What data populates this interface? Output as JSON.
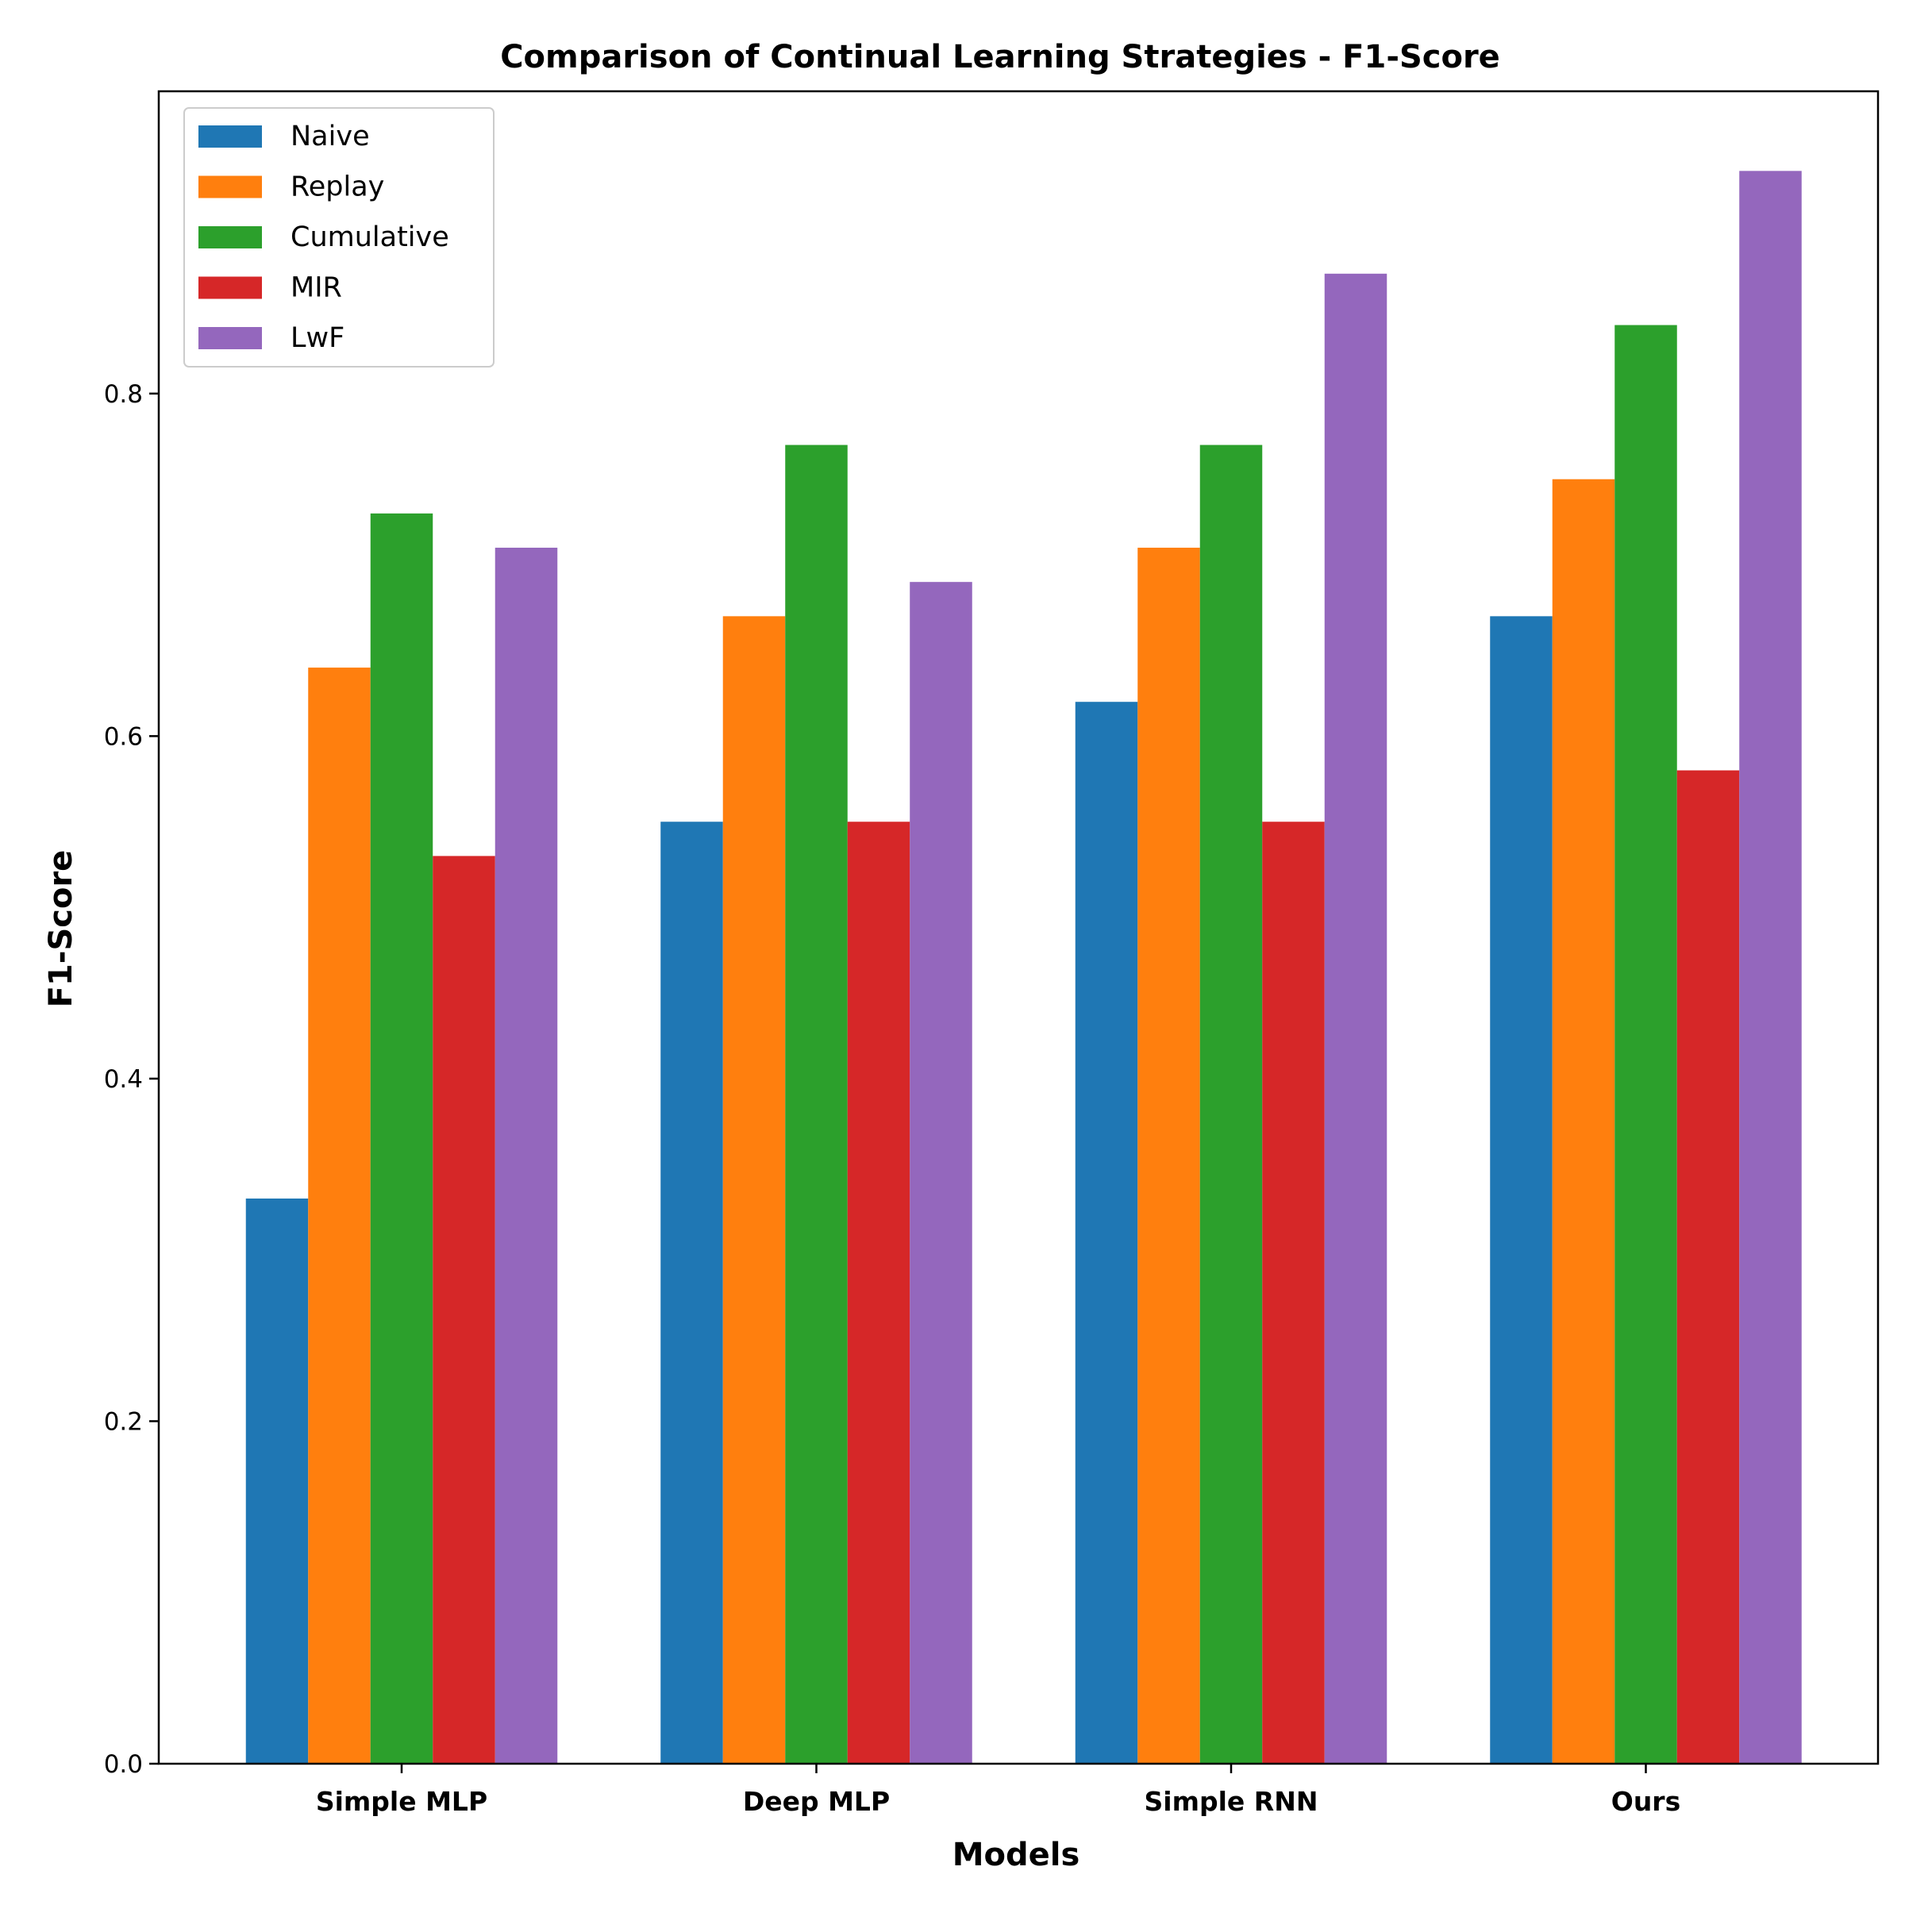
{
  "chart_data": {
    "type": "bar",
    "title": "Comparison of Continual Learning Strategies - F1-Score",
    "xlabel": "Models",
    "ylabel": "F1-Score",
    "categories": [
      "Simple MLP",
      "Deep MLP",
      "Simple RNN",
      "Ours"
    ],
    "series": [
      {
        "name": "Naive",
        "color": "#1f77b4",
        "values": [
          0.33,
          0.55,
          0.62,
          0.67
        ]
      },
      {
        "name": "Replay",
        "color": "#ff7f0e",
        "values": [
          0.64,
          0.67,
          0.71,
          0.75
        ]
      },
      {
        "name": "Cumulative",
        "color": "#2ca02c",
        "values": [
          0.73,
          0.77,
          0.77,
          0.84
        ]
      },
      {
        "name": "MIR",
        "color": "#d62728",
        "values": [
          0.53,
          0.55,
          0.55,
          0.58
        ]
      },
      {
        "name": "LwF",
        "color": "#9467bd",
        "values": [
          0.71,
          0.69,
          0.87,
          0.93
        ]
      }
    ],
    "ylim": [
      0,
      0.9765
    ],
    "yticks": [
      "0.0",
      "0.2",
      "0.4",
      "0.6",
      "0.8"
    ],
    "grid": false,
    "legend_position": "top-left"
  }
}
